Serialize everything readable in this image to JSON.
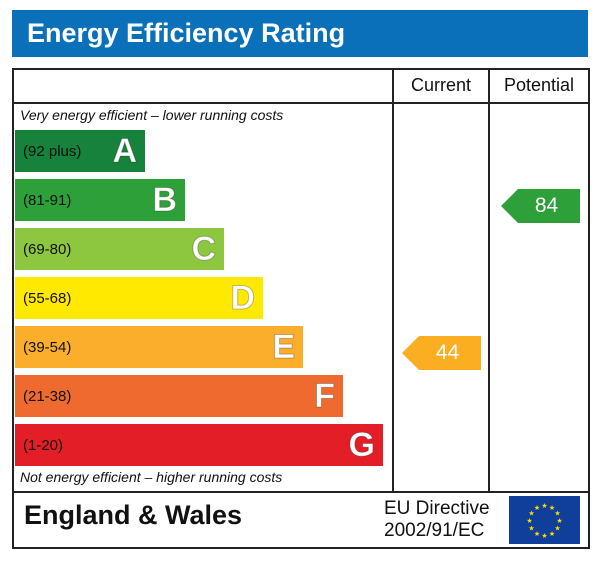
{
  "title": "Energy Efficiency Rating",
  "columns": {
    "current": "Current",
    "potential": "Potential"
  },
  "top_note": "Very energy efficient – lower running costs",
  "bottom_note": "Not energy efficient – higher running costs",
  "footer": {
    "region": "England & Wales",
    "directive_line1": "EU Directive",
    "directive_line2": "2002/91/EC",
    "flag": "eu-flag"
  },
  "chart_data": {
    "type": "bar",
    "bands": [
      {
        "range": "(92 plus)",
        "letter": "A",
        "color": "#16823c"
      },
      {
        "range": "(81-91)",
        "letter": "B",
        "color": "#2ea03a"
      },
      {
        "range": "(69-80)",
        "letter": "C",
        "color": "#8dc63f"
      },
      {
        "range": "(55-68)",
        "letter": "D",
        "color": "#ffe900"
      },
      {
        "range": "(39-54)",
        "letter": "E",
        "color": "#fbae2c"
      },
      {
        "range": "(21-38)",
        "letter": "F",
        "color": "#ef6a2e"
      },
      {
        "range": "(1-20)",
        "letter": "G",
        "color": "#e31e26"
      }
    ],
    "current": {
      "value": "44",
      "band": "E",
      "color": "#fbae22"
    },
    "potential": {
      "value": "84",
      "band": "B",
      "color": "#2ea03a"
    }
  }
}
